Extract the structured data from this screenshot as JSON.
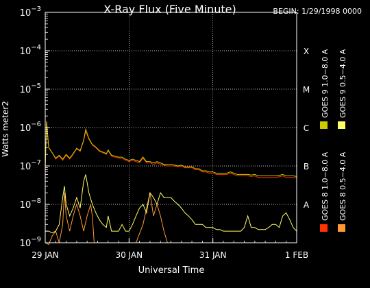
{
  "chart_data": {
    "type": "line",
    "title": "X-Ray Flux (Five Minute)",
    "subtitle": "BEGIN: 1/29/1998 0000",
    "xlabel": "Universal Time",
    "ylabel": "Watts meter2",
    "yscale": "log",
    "ylim": [
      1e-09,
      0.001
    ],
    "xlim": [
      0,
      72
    ],
    "x_unit": "hours since 29 JAN 1998 00:00",
    "x_ticks": [
      {
        "x": 0,
        "label": "29 JAN"
      },
      {
        "x": 24,
        "label": "30 JAN"
      },
      {
        "x": 48,
        "label": "31 JAN"
      },
      {
        "x": 72,
        "label": "1 FEB"
      }
    ],
    "y_ticks": [
      {
        "y": 1e-09,
        "base": "10",
        "exp": "−9"
      },
      {
        "y": 1e-08,
        "base": "10",
        "exp": "−8"
      },
      {
        "y": 1e-07,
        "base": "10",
        "exp": "−7"
      },
      {
        "y": 1e-06,
        "base": "10",
        "exp": "−6"
      },
      {
        "y": 1e-05,
        "base": "10",
        "exp": "−5"
      },
      {
        "y": 0.0001,
        "base": "10",
        "exp": "−4"
      },
      {
        "y": 0.001,
        "base": "10",
        "exp": "−3"
      }
    ],
    "class_labels": [
      {
        "y": 1e-08,
        "label": "A"
      },
      {
        "y": 1e-07,
        "label": "B"
      },
      {
        "y": 1e-06,
        "label": "C"
      },
      {
        "y": 1e-05,
        "label": "M"
      },
      {
        "y": 0.0001,
        "label": "X"
      }
    ],
    "grid": true,
    "legend_position": "right (vertical)",
    "series": [
      {
        "name": "GOES 8 1.0−8.0 A",
        "color": "#ff3300",
        "points": [
          [
            0,
            8e-08
          ],
          [
            0.4,
            1.5e-06
          ],
          [
            1,
            3e-07
          ],
          [
            2,
            2.2e-07
          ],
          [
            3,
            1.5e-07
          ],
          [
            4,
            1.8e-07
          ],
          [
            5,
            1.4e-07
          ],
          [
            6,
            1.9e-07
          ],
          [
            7,
            1.5e-07
          ],
          [
            8,
            2e-07
          ],
          [
            9,
            2.8e-07
          ],
          [
            10,
            2.4e-07
          ],
          [
            11,
            4.5e-07
          ],
          [
            11.6,
            8e-07
          ],
          [
            12.5,
            5e-07
          ],
          [
            13.5,
            3.5e-07
          ],
          [
            14.5,
            3e-07
          ],
          [
            15.5,
            2.4e-07
          ],
          [
            16.5,
            2.2e-07
          ],
          [
            17.5,
            2e-07
          ],
          [
            18,
            2.5e-07
          ],
          [
            19,
            1.8e-07
          ],
          [
            20,
            1.7e-07
          ],
          [
            21,
            1.6e-07
          ],
          [
            22,
            1.6e-07
          ],
          [
            23,
            1.4e-07
          ],
          [
            24,
            1.3e-07
          ],
          [
            25,
            1.4e-07
          ],
          [
            26,
            1.3e-07
          ],
          [
            27,
            1.2e-07
          ],
          [
            28,
            1.6e-07
          ],
          [
            29,
            1.2e-07
          ],
          [
            30,
            1.2e-07
          ],
          [
            31,
            1.1e-07
          ],
          [
            32,
            1.2e-07
          ],
          [
            33,
            1.1e-07
          ],
          [
            34,
            1.05e-07
          ],
          [
            35,
            1e-07
          ],
          [
            36,
            1e-07
          ],
          [
            37,
            1e-07
          ],
          [
            38,
            9.5e-08
          ],
          [
            39,
            1e-07
          ],
          [
            40,
            9e-08
          ],
          [
            41,
            9e-08
          ],
          [
            42,
            9e-08
          ],
          [
            43,
            8e-08
          ],
          [
            44,
            8e-08
          ],
          [
            45,
            7e-08
          ],
          [
            46,
            7e-08
          ],
          [
            47,
            6.5e-08
          ],
          [
            48,
            6.5e-08
          ],
          [
            49,
            6e-08
          ],
          [
            50,
            6e-08
          ],
          [
            51,
            6e-08
          ],
          [
            52,
            6e-08
          ],
          [
            53,
            6.5e-08
          ],
          [
            54,
            6e-08
          ],
          [
            55,
            5.5e-08
          ],
          [
            56,
            5.5e-08
          ],
          [
            57,
            5.5e-08
          ],
          [
            58,
            5.5e-08
          ],
          [
            59,
            5.3e-08
          ],
          [
            60,
            5.5e-08
          ],
          [
            61,
            5e-08
          ],
          [
            62,
            5e-08
          ],
          [
            63,
            5e-08
          ],
          [
            64,
            5e-08
          ],
          [
            65,
            5e-08
          ],
          [
            66,
            5e-08
          ],
          [
            67,
            5.2e-08
          ],
          [
            68,
            5.5e-08
          ],
          [
            69,
            5e-08
          ],
          [
            70,
            5e-08
          ],
          [
            71,
            5e-08
          ],
          [
            72,
            4.8e-08
          ]
        ]
      },
      {
        "name": "GOES 8 0.5−4.0 A",
        "color": "#ff9933",
        "points": [
          [
            0,
            1e-09
          ],
          [
            1,
            9e-10
          ],
          [
            2,
            1.5e-09
          ],
          [
            3,
            2e-09
          ],
          [
            4,
            1e-09
          ],
          [
            5,
            3e-09
          ],
          [
            5.5,
            2e-08
          ],
          [
            6,
            5e-09
          ],
          [
            7,
            2e-09
          ],
          [
            8,
            5e-09
          ],
          [
            9,
            1e-08
          ],
          [
            10,
            5e-09
          ],
          [
            11,
            2e-09
          ],
          [
            12,
            5e-09
          ],
          [
            13,
            1e-08
          ],
          [
            13.5,
            5e-09
          ],
          [
            14,
            1e-09
          ],
          [
            15,
            1e-09
          ],
          [
            16,
            1e-09
          ],
          [
            17,
            1e-09
          ],
          [
            18,
            1e-09
          ],
          [
            19,
            1e-09
          ],
          [
            20,
            1e-09
          ],
          [
            21,
            1e-09
          ],
          [
            22,
            1e-09
          ],
          [
            23,
            1e-09
          ],
          [
            24,
            1e-09
          ],
          [
            26,
            1e-09
          ],
          [
            28,
            3e-09
          ],
          [
            30,
            2e-08
          ],
          [
            31,
            5e-09
          ],
          [
            32,
            1e-08
          ],
          [
            33,
            5e-09
          ],
          [
            34,
            2e-09
          ],
          [
            35,
            1e-09
          ],
          [
            36,
            1e-09
          ],
          [
            40,
            1e-09
          ],
          [
            44,
            1e-09
          ],
          [
            48,
            1e-09
          ],
          [
            50,
            1e-09
          ],
          [
            52,
            1e-09
          ],
          [
            54,
            1e-09
          ],
          [
            56,
            1e-09
          ],
          [
            58,
            1e-09
          ],
          [
            60,
            1e-09
          ],
          [
            64,
            1e-09
          ],
          [
            68,
            1e-09
          ],
          [
            72,
            1e-09
          ]
        ]
      },
      {
        "name": "GOES 9 1.0−8.0 A",
        "color": "#cccc00",
        "points": [
          [
            0,
            9e-08
          ],
          [
            0.4,
            1.4e-06
          ],
          [
            1,
            3e-07
          ],
          [
            2,
            2.2e-07
          ],
          [
            3,
            1.6e-07
          ],
          [
            4,
            1.9e-07
          ],
          [
            5,
            1.5e-07
          ],
          [
            6,
            2e-07
          ],
          [
            7,
            1.6e-07
          ],
          [
            8,
            2.1e-07
          ],
          [
            9,
            2.9e-07
          ],
          [
            10,
            2.5e-07
          ],
          [
            11,
            4.7e-07
          ],
          [
            11.6,
            9e-07
          ],
          [
            12.5,
            5.2e-07
          ],
          [
            13.5,
            3.6e-07
          ],
          [
            14.5,
            3.1e-07
          ],
          [
            15.5,
            2.5e-07
          ],
          [
            16.5,
            2.3e-07
          ],
          [
            17.5,
            2.1e-07
          ],
          [
            18,
            2.6e-07
          ],
          [
            19,
            1.9e-07
          ],
          [
            20,
            1.8e-07
          ],
          [
            21,
            1.7e-07
          ],
          [
            22,
            1.7e-07
          ],
          [
            23,
            1.5e-07
          ],
          [
            24,
            1.4e-07
          ],
          [
            25,
            1.5e-07
          ],
          [
            26,
            1.4e-07
          ],
          [
            27,
            1.3e-07
          ],
          [
            28,
            1.7e-07
          ],
          [
            29,
            1.3e-07
          ],
          [
            30,
            1.3e-07
          ],
          [
            31,
            1.2e-07
          ],
          [
            32,
            1.3e-07
          ],
          [
            33,
            1.2e-07
          ],
          [
            34,
            1.1e-07
          ],
          [
            35,
            1.1e-07
          ],
          [
            36,
            1.1e-07
          ],
          [
            37,
            1.05e-07
          ],
          [
            38,
            1e-07
          ],
          [
            39,
            1.05e-07
          ],
          [
            40,
            9.5e-08
          ],
          [
            41,
            9.5e-08
          ],
          [
            42,
            9.5e-08
          ],
          [
            43,
            8.5e-08
          ],
          [
            44,
            8.5e-08
          ],
          [
            45,
            7.5e-08
          ],
          [
            46,
            7.5e-08
          ],
          [
            47,
            7e-08
          ],
          [
            48,
            7e-08
          ],
          [
            49,
            6.5e-08
          ],
          [
            50,
            6.5e-08
          ],
          [
            51,
            6.5e-08
          ],
          [
            52,
            6.5e-08
          ],
          [
            53,
            7e-08
          ],
          [
            54,
            6.5e-08
          ],
          [
            55,
            6e-08
          ],
          [
            56,
            6e-08
          ],
          [
            57,
            6e-08
          ],
          [
            58,
            6e-08
          ],
          [
            59,
            5.8e-08
          ],
          [
            60,
            6e-08
          ],
          [
            61,
            5.5e-08
          ],
          [
            62,
            5.5e-08
          ],
          [
            63,
            5.5e-08
          ],
          [
            64,
            5.5e-08
          ],
          [
            65,
            5.5e-08
          ],
          [
            66,
            5.5e-08
          ],
          [
            67,
            5.7e-08
          ],
          [
            68,
            6e-08
          ],
          [
            69,
            5.5e-08
          ],
          [
            70,
            5.5e-08
          ],
          [
            71,
            5.5e-08
          ],
          [
            72,
            5.3e-08
          ]
        ]
      },
      {
        "name": "GOES 9 0.5−4.0 A",
        "color": "#ffff66",
        "points": [
          [
            0,
            2e-09
          ],
          [
            1,
            2e-09
          ],
          [
            2,
            1.8e-09
          ],
          [
            3,
            2e-09
          ],
          [
            4,
            3e-09
          ],
          [
            5,
            1.5e-08
          ],
          [
            5.5,
            3e-08
          ],
          [
            6,
            1e-08
          ],
          [
            7,
            5e-09
          ],
          [
            8,
            8e-09
          ],
          [
            9,
            1.5e-08
          ],
          [
            10,
            8e-09
          ],
          [
            11,
            4e-08
          ],
          [
            11.6,
            6e-08
          ],
          [
            12.5,
            2e-08
          ],
          [
            13.5,
            1e-08
          ],
          [
            14.5,
            6e-09
          ],
          [
            15.5,
            4e-09
          ],
          [
            16.5,
            3e-09
          ],
          [
            17.5,
            2.5e-09
          ],
          [
            18,
            5e-09
          ],
          [
            19,
            2e-09
          ],
          [
            20,
            2e-09
          ],
          [
            21,
            2e-09
          ],
          [
            22,
            3e-09
          ],
          [
            23,
            2e-09
          ],
          [
            24,
            2e-09
          ],
          [
            25,
            3e-09
          ],
          [
            26,
            5e-09
          ],
          [
            27,
            8e-09
          ],
          [
            28,
            1e-08
          ],
          [
            29,
            6e-09
          ],
          [
            30,
            2e-08
          ],
          [
            31,
            1.5e-08
          ],
          [
            32,
            1e-08
          ],
          [
            33,
            2e-08
          ],
          [
            34,
            1.5e-08
          ],
          [
            35,
            1.5e-08
          ],
          [
            36,
            1.5e-08
          ],
          [
            37,
            1.2e-08
          ],
          [
            38,
            1e-08
          ],
          [
            39,
            8e-09
          ],
          [
            40,
            6e-09
          ],
          [
            41,
            5e-09
          ],
          [
            42,
            4e-09
          ],
          [
            43,
            3e-09
          ],
          [
            44,
            3e-09
          ],
          [
            45,
            3e-09
          ],
          [
            46,
            2.5e-09
          ],
          [
            47,
            2.5e-09
          ],
          [
            48,
            2.5e-09
          ],
          [
            49,
            2.2e-09
          ],
          [
            50,
            2.2e-09
          ],
          [
            51,
            2e-09
          ],
          [
            52,
            2e-09
          ],
          [
            53,
            2e-09
          ],
          [
            54,
            2e-09
          ],
          [
            55,
            2e-09
          ],
          [
            56,
            2e-09
          ],
          [
            57,
            2.5e-09
          ],
          [
            58,
            5e-09
          ],
          [
            59,
            2.5e-09
          ],
          [
            60,
            2.5e-09
          ],
          [
            61,
            2.2e-09
          ],
          [
            62,
            2.2e-09
          ],
          [
            63,
            2.2e-09
          ],
          [
            64,
            2.5e-09
          ],
          [
            65,
            3e-09
          ],
          [
            66,
            3e-09
          ],
          [
            67,
            2.5e-09
          ],
          [
            68,
            5e-09
          ],
          [
            69,
            6e-09
          ],
          [
            70,
            4e-09
          ],
          [
            71,
            2.5e-09
          ],
          [
            72,
            2e-09
          ]
        ]
      }
    ]
  }
}
